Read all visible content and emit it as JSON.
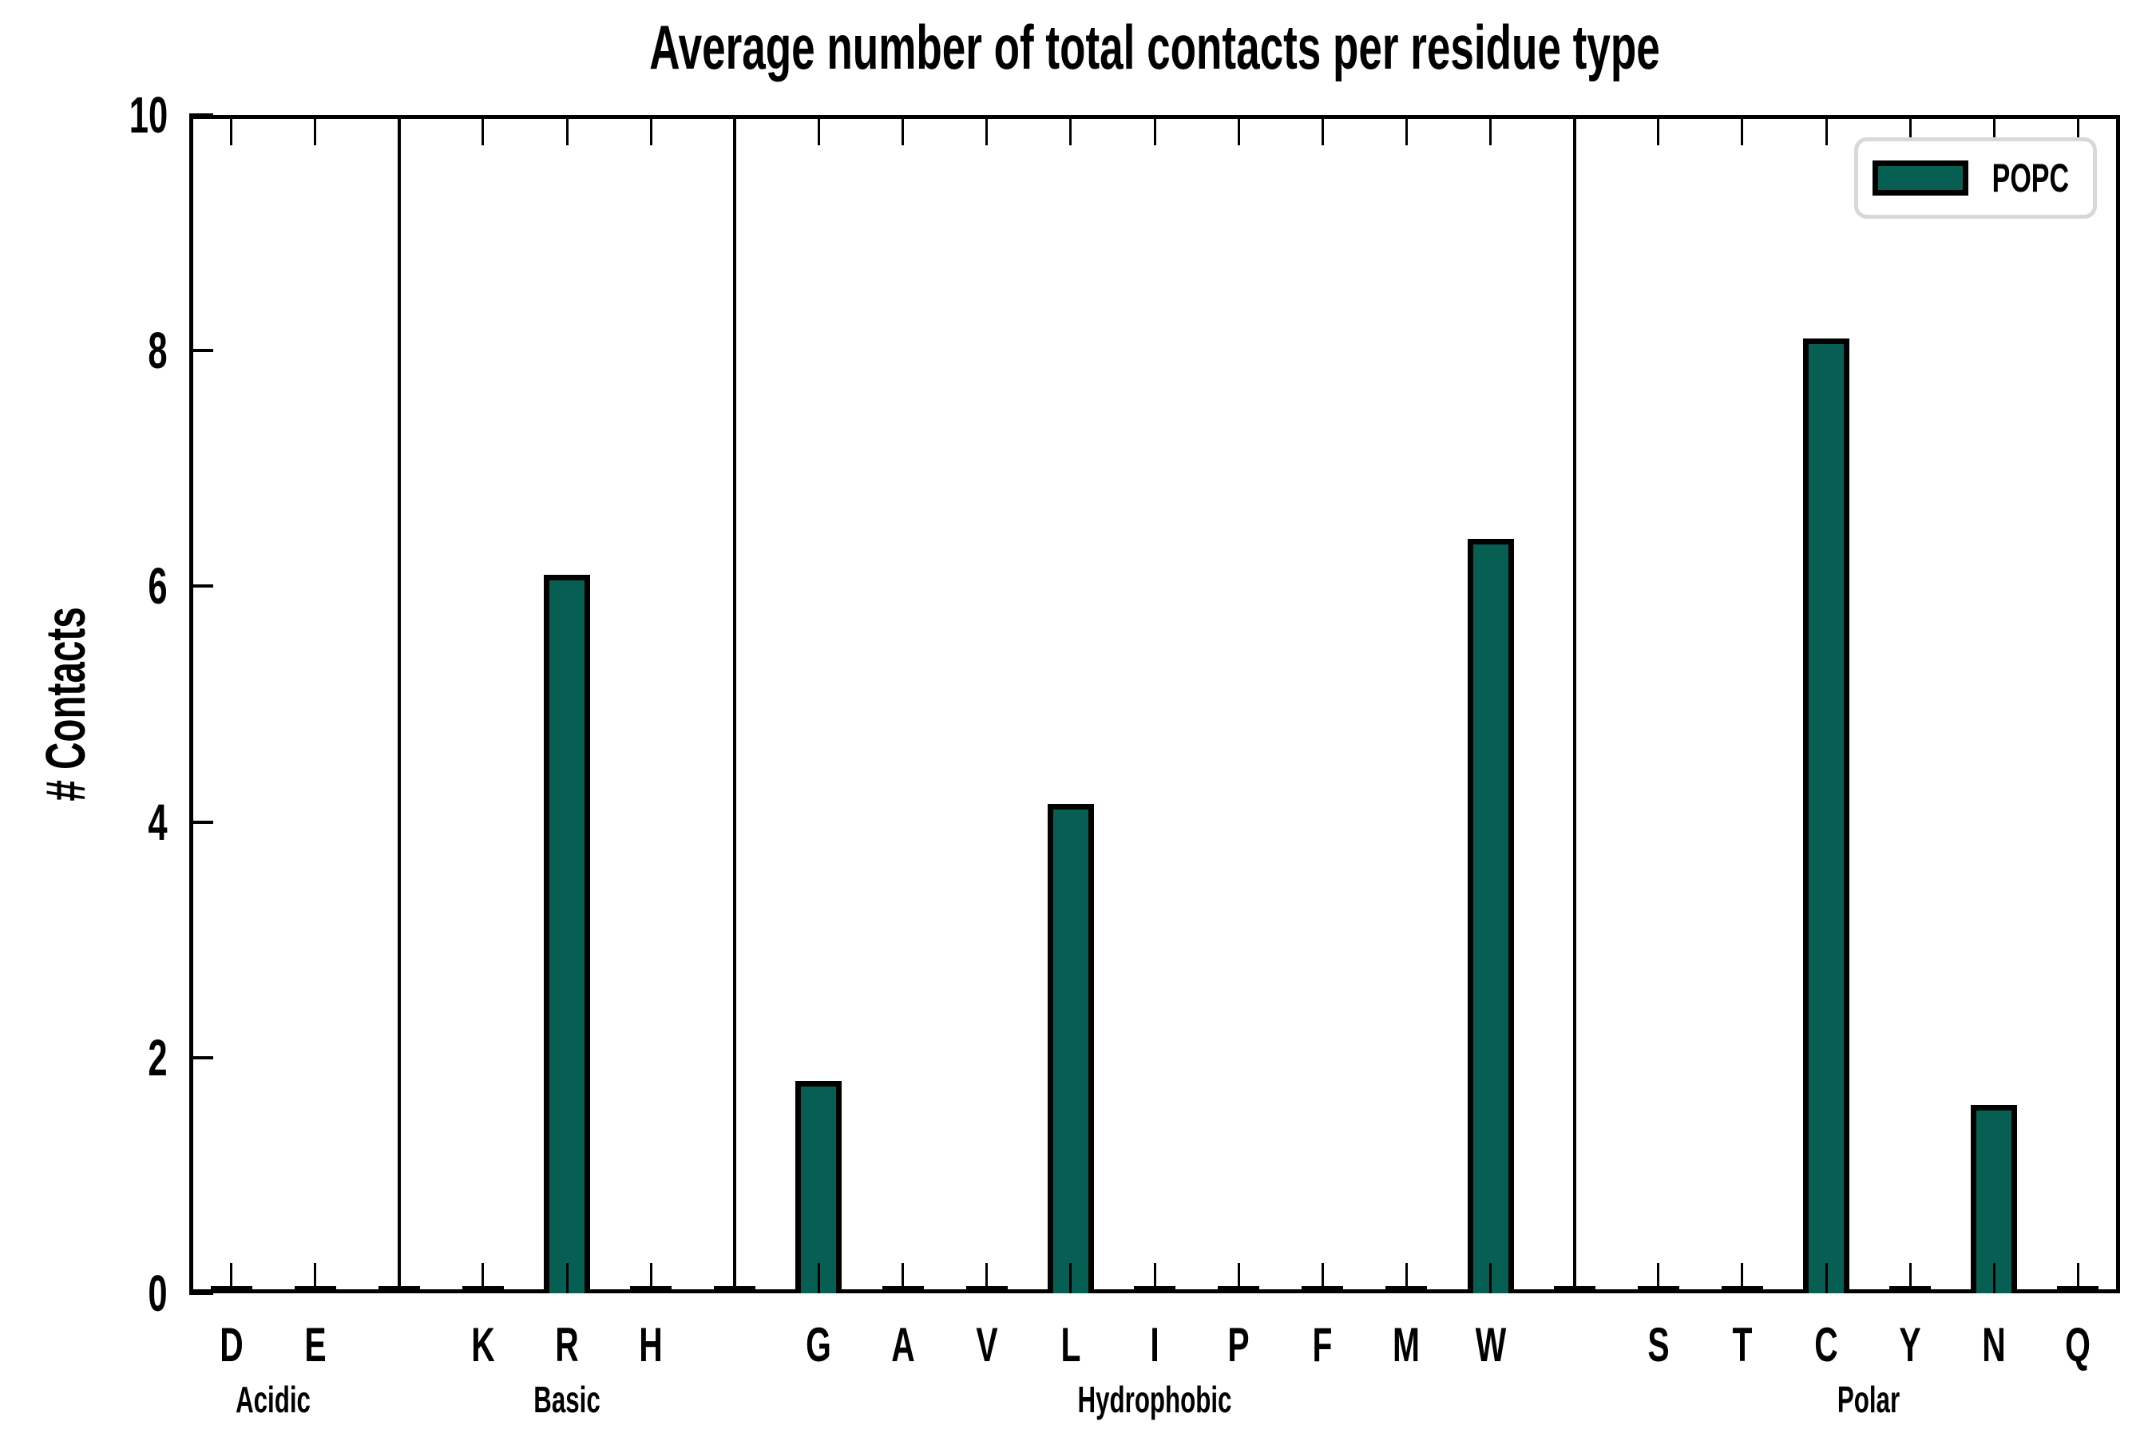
{
  "chart_data": {
    "type": "bar",
    "title": "Average number of total contacts per residue type",
    "ylabel": "# Contacts",
    "xlabel": "",
    "ylim": [
      0,
      10
    ],
    "yticks": [
      "0",
      "2",
      "4",
      "6",
      "8",
      "10"
    ],
    "ytick_values": [
      0,
      2,
      4,
      6,
      8,
      10
    ],
    "grid": false,
    "legend": {
      "label": "POPC",
      "position": "upper right"
    },
    "colors": {
      "bar_fill": "#065f52",
      "bar_edge": "#000000",
      "axis": "#000000",
      "legend_border": "#d8d8d8"
    },
    "groups": [
      {
        "label": "Acidic",
        "categories": [
          "D",
          "E"
        ],
        "values": [
          0,
          0
        ]
      },
      {
        "label": "Basic",
        "categories": [
          "K",
          "R",
          "H"
        ],
        "values": [
          0,
          6.1,
          0
        ]
      },
      {
        "label": "Hydrophobic",
        "categories": [
          "G",
          "A",
          "V",
          "L",
          "I",
          "P",
          "F",
          "M",
          "W"
        ],
        "values": [
          1.8,
          0,
          0,
          4.15,
          0,
          0,
          0,
          0,
          6.4
        ]
      },
      {
        "label": "Polar",
        "categories": [
          "S",
          "T",
          "C",
          "Y",
          "N",
          "Q"
        ],
        "values": [
          0,
          0,
          8.1,
          0,
          1.6,
          0
        ]
      }
    ]
  }
}
